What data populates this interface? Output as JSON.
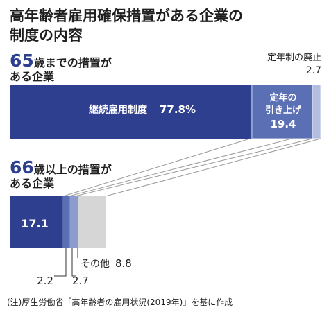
{
  "colors": {
    "dark_blue": "#2e3f8f",
    "mid_blue": "#5b6fb5",
    "light_blue": "#8e9ccd",
    "pale_blue": "#b3bde0",
    "gray": "#d6d6d6",
    "text": "#1f1f1f",
    "connector": "#9a9a9a"
  },
  "chart_data": {
    "type": "bar",
    "orientation": "horizontal-stacked",
    "title_line1": "高年齢者雇用確保措置がある企業の",
    "title_line2": "制度の内容",
    "note": "(注)厚生労働省「高年齢者の雇用状況(2019年)」を基に作成",
    "bar1": {
      "label_num": "65",
      "label_rest1": "歳までの措置が",
      "label_rest2": "ある企業",
      "segments": [
        {
          "name": "継続雇用制度",
          "value": 77.8,
          "display": "77.8%"
        },
        {
          "name_line1": "定年の",
          "name_line2": "引き上げ",
          "value": 19.4,
          "display": "19.4"
        },
        {
          "name": "定年制の廃止",
          "value": 2.7,
          "display": "2.7"
        }
      ]
    },
    "bar2": {
      "label_num": "66",
      "label_rest1": "歳以上の措置が",
      "label_rest2": "ある企業",
      "segments": [
        {
          "value": 17.1,
          "display": "17.1"
        },
        {
          "value": 2.2,
          "display": "2.2"
        },
        {
          "value": 2.7,
          "display": "2.7"
        },
        {
          "name": "その他",
          "value": 8.8,
          "display": "8.8"
        }
      ]
    }
  }
}
